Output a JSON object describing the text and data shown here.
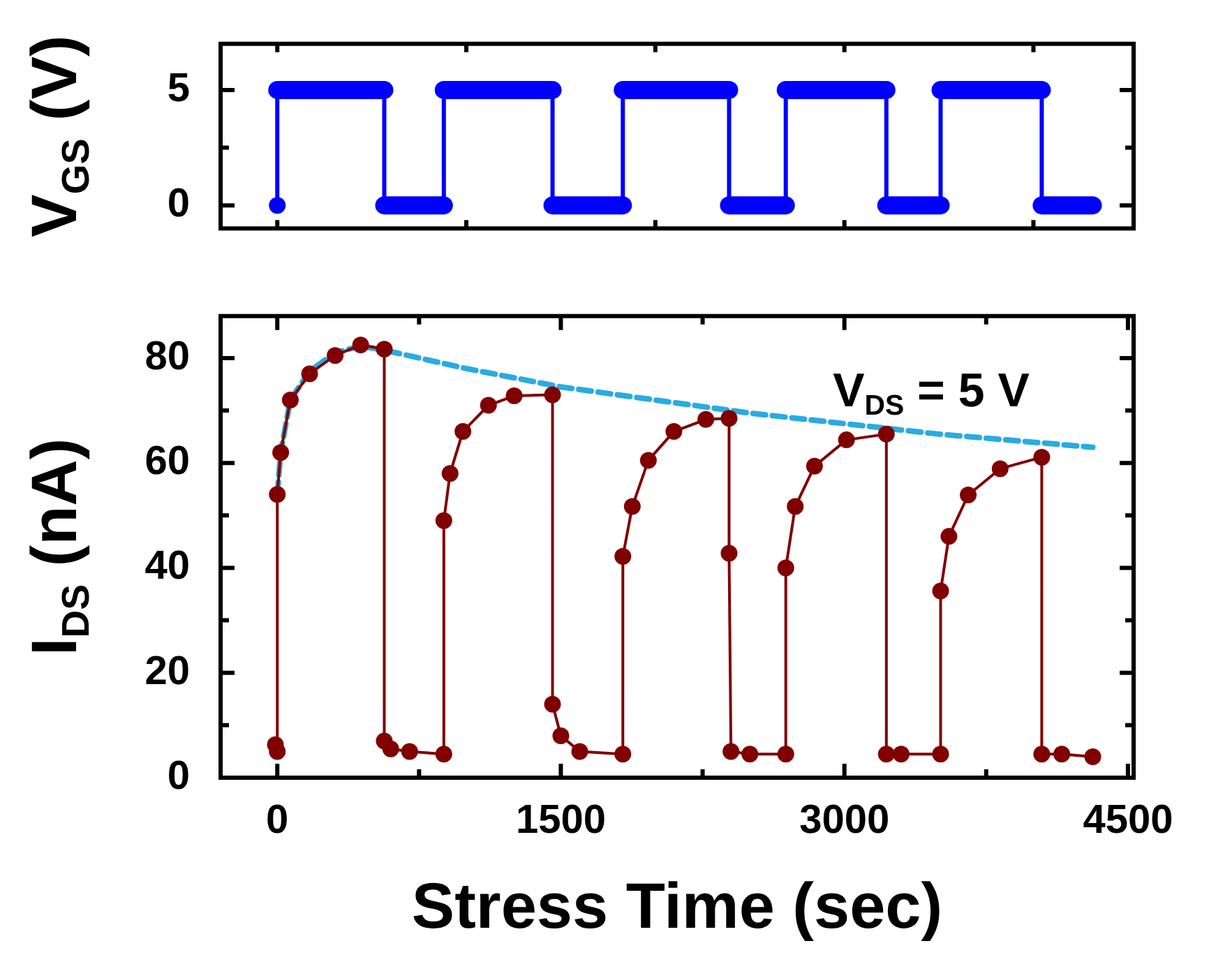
{
  "chart_data": [
    {
      "type": "line",
      "ylabel": "V$_{GS}$ (V)",
      "xlim": [
        -300,
        4530
      ],
      "ylim": [
        -1,
        7
      ],
      "xticks": [
        {
          "value": 0,
          "label": null
        },
        {
          "value": 1000,
          "label": null
        },
        {
          "value": 2000,
          "label": null
        },
        {
          "value": 3000,
          "label": null
        },
        {
          "value": 4000,
          "label": null
        }
      ],
      "yticks": [
        0,
        {
          "value": 2.5,
          "label": null
        },
        5
      ],
      "tick_labels": "y",
      "grid": false,
      "legend": false,
      "marker": "circle",
      "series": [
        {
          "color": "#0000ff",
          "x": [
            0,
            0,
            566,
            566,
            881,
            881,
            1456,
            1456,
            1828,
            1828,
            2390,
            2390,
            2690,
            2690,
            3222,
            3222,
            3509,
            3509,
            4044,
            4044,
            4314
          ],
          "values": [
            0,
            5,
            5,
            0,
            0,
            5,
            5,
            0,
            0,
            5,
            5,
            0,
            0,
            5,
            5,
            0,
            0,
            5,
            5,
            0,
            0
          ]
        }
      ]
    },
    {
      "type": "line",
      "xlabel": "Stress Time (sec)",
      "ylabel": "I$_{DS}$ (nA)",
      "annotations": [
        "V$_{DS}$ = 5 V"
      ],
      "xlim": [
        -300,
        4530
      ],
      "ylim": [
        0,
        88
      ],
      "xticks": [
        0,
        {
          "value": 750,
          "label": null
        },
        1500,
        {
          "value": 2250,
          "label": null
        },
        3000,
        {
          "value": 3750,
          "label": null
        },
        4500
      ],
      "yticks": [
        0,
        {
          "value": 10,
          "label": null
        },
        20,
        {
          "value": 30,
          "label": null
        },
        40,
        {
          "value": 50,
          "label": null
        },
        60,
        {
          "value": 70,
          "label": null
        },
        80
      ],
      "grid": false,
      "legend": false,
      "marker": "circle",
      "series": [
        {
          "color": "#800000",
          "x": [
            -10,
            0,
            0,
            18,
            69,
            171,
            306,
            441,
            566,
            566,
            600,
            700,
            881,
            881,
            914,
            982,
            1117,
            1253,
            1456,
            1456,
            1500,
            1600,
            1828,
            1828,
            1878,
            1963,
            2098,
            2267,
            2390,
            2390,
            2400,
            2500,
            2690,
            2690,
            2740,
            2842,
            3011,
            3222,
            3222,
            3300,
            3509,
            3509,
            3553,
            3655,
            3824,
            4044,
            4044,
            4150,
            4314
          ],
          "values": [
            6.3,
            5,
            54,
            62,
            72,
            77,
            80.5,
            82.5,
            81.7,
            7,
            5.5,
            5,
            4.5,
            49,
            58,
            66,
            71,
            72.8,
            73,
            14,
            8,
            5,
            4.5,
            42.2,
            51.7,
            60.5,
            66,
            68.3,
            68.5,
            42.8,
            5,
            4.5,
            4.5,
            40,
            51.7,
            59.4,
            64.4,
            65.5,
            4.5,
            4.5,
            4.5,
            35.6,
            46,
            53.9,
            58.9,
            61.1,
            4.5,
            4.5,
            4
          ]
        },
        {
          "color": "#29abe2",
          "marker": "none",
          "line_style": "dashed",
          "x": [
            0,
            18,
            69,
            171,
            306,
            441,
            566,
            1000,
            1500,
            2000,
            2500,
            3000,
            3500,
            4314
          ],
          "values": [
            54,
            62,
            72,
            77.5,
            81,
            82.3,
            81.5,
            78,
            74.5,
            72,
            69.5,
            67.5,
            65.5,
            63
          ]
        }
      ]
    }
  ]
}
